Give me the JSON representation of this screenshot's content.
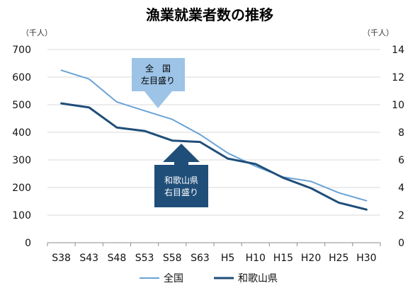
{
  "chart_data": {
    "type": "line",
    "title": "漁業就業者数の推移",
    "left_unit": "（千人）",
    "right_unit": "（千人）",
    "categories": [
      "S38",
      "S43",
      "S48",
      "S53",
      "S58",
      "S63",
      "H5",
      "H10",
      "H15",
      "H20",
      "H25",
      "H30"
    ],
    "y_left": {
      "min": 0,
      "max": 700,
      "step": 100
    },
    "y_right": {
      "min": 0,
      "max": 14,
      "step": 2
    },
    "grid": true,
    "legend_position": "bottom",
    "series": [
      {
        "name": "全国",
        "axis": "left",
        "color": "#6aa3d6",
        "values": [
          625,
          593,
          510,
          478,
          447,
          392,
          325,
          277,
          238,
          222,
          181,
          152
        ]
      },
      {
        "name": "和歌山県",
        "axis": "right",
        "color": "#1f4e79",
        "values": [
          10.1,
          9.8,
          8.35,
          8.1,
          7.4,
          7.3,
          6.1,
          5.7,
          4.7,
          3.95,
          2.9,
          2.4
        ]
      }
    ],
    "annotations": [
      {
        "line1": "全　国",
        "line2": "左目盛り",
        "color": "#9dc3e6",
        "text_color": "#1f1f1f",
        "points_to": "全国"
      },
      {
        "line1": "和歌山県",
        "line2": "右目盛り",
        "color": "#1f4e79",
        "text_color": "#ffffff",
        "points_to": "和歌山県"
      }
    ]
  }
}
